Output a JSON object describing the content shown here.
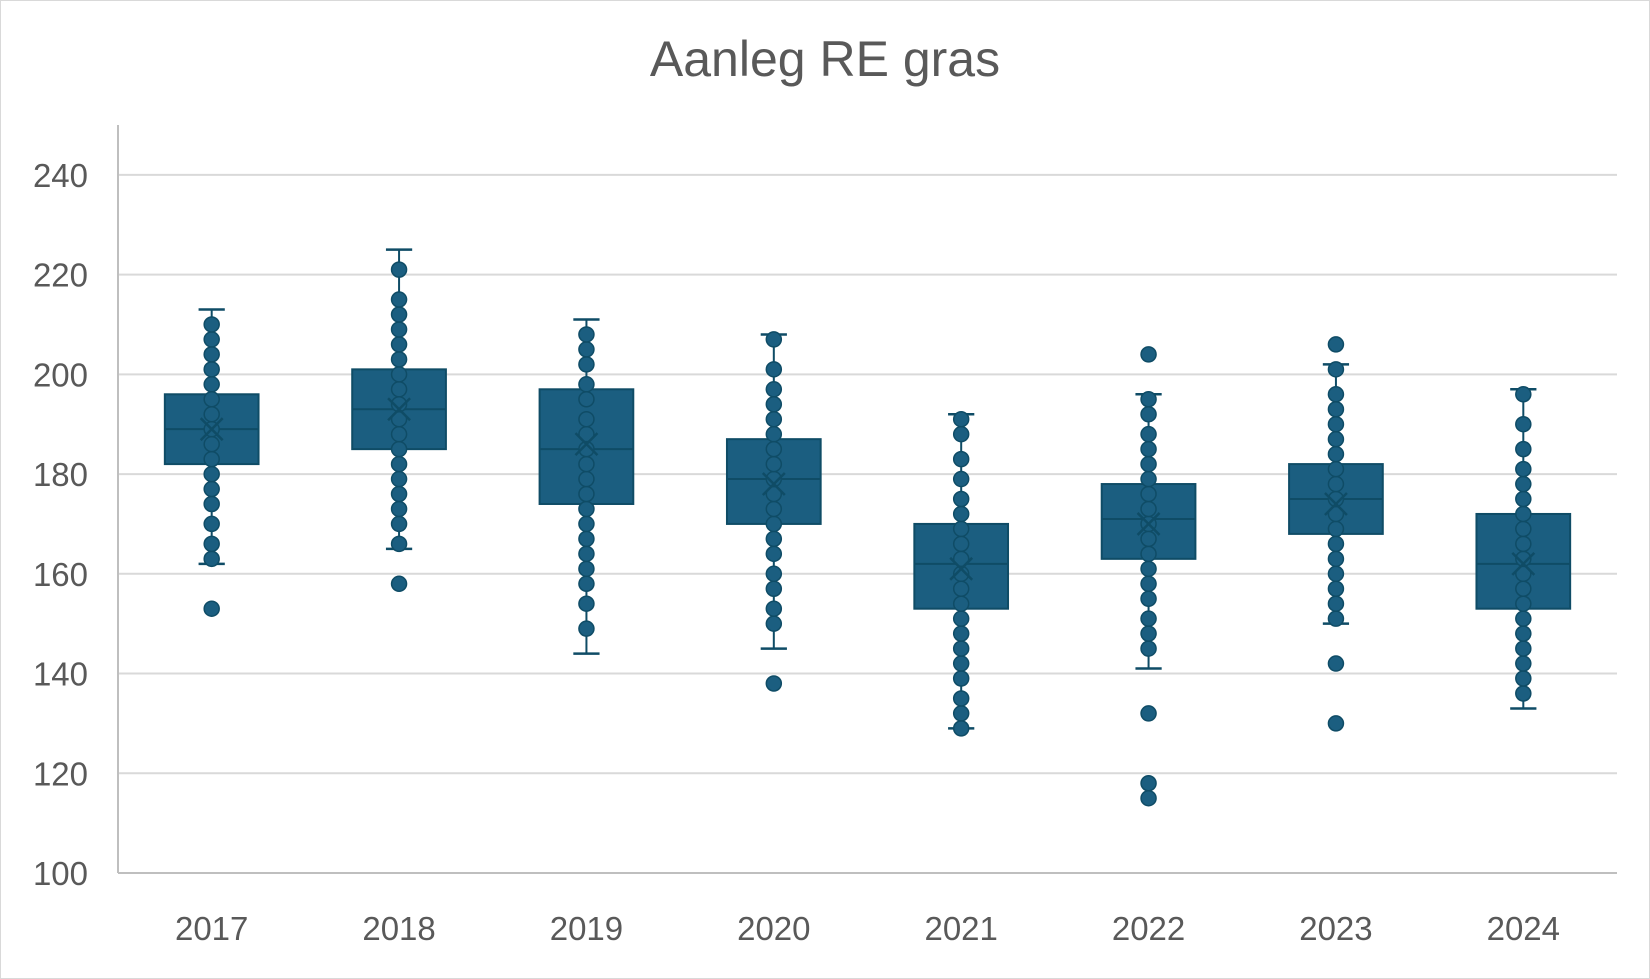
{
  "chart_data": {
    "type": "box",
    "title": "Aanleg RE gras",
    "xlabel": "",
    "ylabel": "",
    "ylim": [
      100,
      250
    ],
    "yticks": [
      100,
      120,
      140,
      160,
      180,
      200,
      220,
      240
    ],
    "grid": true,
    "legend": "none",
    "colors": {
      "box": "#1b5e80",
      "stroke": "#0f4c66",
      "grid": "#d9d9d9",
      "axis": "#bfbfbf",
      "text": "#595959"
    },
    "categories": [
      "2017",
      "2018",
      "2019",
      "2020",
      "2021",
      "2022",
      "2023",
      "2024"
    ],
    "boxes": [
      {
        "year": "2017",
        "min": 162,
        "q1": 182,
        "median": 189,
        "q3": 196,
        "max": 213,
        "mean": 189,
        "points": [
          153,
          163,
          166,
          170,
          174,
          177,
          180,
          183,
          186,
          189,
          192,
          195,
          198,
          201,
          204,
          207,
          210
        ]
      },
      {
        "year": "2018",
        "min": 165,
        "q1": 185,
        "median": 193,
        "q3": 201,
        "max": 225,
        "mean": 193,
        "points": [
          158,
          166,
          170,
          173,
          176,
          179,
          182,
          185,
          188,
          191,
          194,
          197,
          200,
          203,
          206,
          209,
          212,
          215,
          221
        ]
      },
      {
        "year": "2019",
        "min": 144,
        "q1": 174,
        "median": 185,
        "q3": 197,
        "max": 211,
        "mean": 186,
        "points": [
          149,
          154,
          158,
          161,
          164,
          167,
          170,
          173,
          176,
          179,
          182,
          185,
          188,
          191,
          195,
          198,
          202,
          205,
          208
        ]
      },
      {
        "year": "2020",
        "min": 145,
        "q1": 170,
        "median": 179,
        "q3": 187,
        "max": 208,
        "mean": 178,
        "points": [
          138,
          150,
          153,
          157,
          160,
          164,
          167,
          170,
          173,
          176,
          179,
          182,
          185,
          188,
          191,
          194,
          197,
          201,
          207
        ]
      },
      {
        "year": "2021",
        "min": 129,
        "q1": 153,
        "median": 162,
        "q3": 170,
        "max": 192,
        "mean": 161,
        "points": [
          129,
          132,
          135,
          139,
          142,
          145,
          148,
          151,
          154,
          157,
          160,
          163,
          166,
          169,
          172,
          175,
          179,
          183,
          188,
          191
        ]
      },
      {
        "year": "2022",
        "min": 141,
        "q1": 163,
        "median": 171,
        "q3": 178,
        "max": 196,
        "mean": 170,
        "points": [
          115,
          118,
          132,
          145,
          148,
          151,
          155,
          158,
          161,
          164,
          167,
          170,
          173,
          176,
          179,
          182,
          185,
          188,
          192,
          195,
          204
        ]
      },
      {
        "year": "2023",
        "min": 150,
        "q1": 168,
        "median": 175,
        "q3": 182,
        "max": 202,
        "mean": 174,
        "points": [
          130,
          142,
          151,
          154,
          157,
          160,
          163,
          166,
          169,
          172,
          175,
          178,
          181,
          184,
          187,
          190,
          193,
          196,
          201,
          206
        ]
      },
      {
        "year": "2024",
        "min": 133,
        "q1": 153,
        "median": 162,
        "q3": 172,
        "max": 197,
        "mean": 162,
        "points": [
          136,
          139,
          142,
          145,
          148,
          151,
          154,
          157,
          160,
          163,
          166,
          169,
          172,
          175,
          178,
          181,
          185,
          190,
          196
        ]
      }
    ]
  }
}
